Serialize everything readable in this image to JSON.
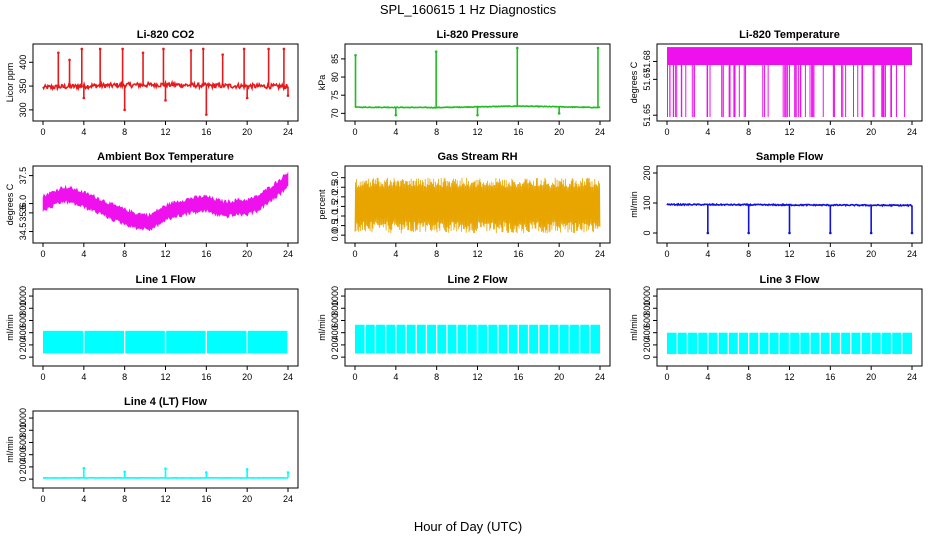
{
  "figure": {
    "title": "SPL_160615  1 Hz Diagnostics",
    "xlabel": "Hour of Day (UTC)"
  },
  "chart_data": [
    {
      "type": "line",
      "title": "Li-820 CO2",
      "ylabel": "Licor ppm",
      "color": "#e8191b",
      "xlim": [
        0,
        24
      ],
      "xticks": [
        0,
        4,
        8,
        12,
        16,
        20,
        24
      ],
      "ylim": [
        285,
        430
      ],
      "yticks": [
        300,
        350,
        400
      ],
      "ytick_labels": [
        "300",
        "350",
        "400"
      ],
      "baseline": [
        [
          0,
          347
        ],
        [
          4,
          350
        ],
        [
          8,
          352
        ],
        [
          12,
          353
        ],
        [
          16,
          351
        ],
        [
          20,
          350
        ],
        [
          24,
          349
        ]
      ],
      "spikes_up": [
        [
          1.5,
          420
        ],
        [
          2.6,
          405
        ],
        [
          3.8,
          428
        ],
        [
          5.6,
          428
        ],
        [
          7.8,
          428
        ],
        [
          9.8,
          420
        ],
        [
          11.8,
          428
        ],
        [
          14.5,
          425
        ],
        [
          15.7,
          428
        ],
        [
          17.6,
          416
        ],
        [
          19.7,
          428
        ],
        [
          22.1,
          428
        ],
        [
          23.6,
          428
        ]
      ],
      "spikes_down": [
        [
          4,
          325
        ],
        [
          8,
          300
        ],
        [
          12,
          320
        ],
        [
          16,
          290
        ],
        [
          20,
          325
        ],
        [
          24,
          330
        ]
      ],
      "noise_amp": 5
    },
    {
      "type": "line",
      "title": "Li-820 Pressure",
      "ylabel": "kPa",
      "color": "#22bb22",
      "xlim": [
        0,
        24
      ],
      "xticks": [
        0,
        4,
        8,
        12,
        16,
        20,
        24
      ],
      "ylim": [
        69,
        88
      ],
      "yticks": [
        70,
        75,
        80,
        85
      ],
      "ytick_labels": [
        "70",
        "75",
        "80",
        "85"
      ],
      "baseline": [
        [
          0,
          71.7
        ],
        [
          8,
          71.6
        ],
        [
          16,
          72.0
        ],
        [
          24,
          71.6
        ]
      ],
      "spikes_up": [
        [
          0.05,
          86
        ],
        [
          7.95,
          87
        ],
        [
          15.9,
          88
        ],
        [
          23.8,
          88
        ]
      ],
      "spikes_down": [
        [
          4,
          69.5
        ],
        [
          12,
          69.5
        ],
        [
          20,
          70.0
        ]
      ],
      "noise_amp": 0.1
    },
    {
      "type": "band",
      "title": "Li-820 Temperature",
      "ylabel": "degrees C",
      "color": "#ee11ee",
      "xlim": [
        0,
        24
      ],
      "xticks": [
        0,
        4,
        8,
        12,
        16,
        20,
        24
      ],
      "ylim": [
        51.649,
        51.6875
      ],
      "yticks": [
        51.65,
        51.67,
        51.68
      ],
      "ytick_labels": [
        "51.65",
        "51.67",
        "51.68"
      ],
      "band": [
        51.678,
        51.688
      ],
      "dropouts_to": 51.649,
      "dropout_count": 70
    },
    {
      "type": "band",
      "title": "Ambient Box Temperature",
      "ylabel": "degrees C",
      "color": "#ee11ee",
      "xlim": [
        0,
        24
      ],
      "xticks": [
        0,
        4,
        8,
        12,
        16,
        20,
        24
      ],
      "ylim": [
        34.1,
        37.8
      ],
      "yticks": [
        34.5,
        35.5,
        36.0,
        37.5
      ],
      "ytick_labels": [
        "34.5",
        "35.5",
        "36.0",
        "37.5"
      ],
      "center": [
        [
          0,
          36.0
        ],
        [
          2,
          36.5
        ],
        [
          3,
          36.4
        ],
        [
          5,
          36.0
        ],
        [
          7,
          35.5
        ],
        [
          9,
          35.1
        ],
        [
          10.5,
          35.0
        ],
        [
          12,
          35.5
        ],
        [
          13,
          35.7
        ],
        [
          14.5,
          35.9
        ],
        [
          16,
          36.0
        ],
        [
          17,
          35.8
        ],
        [
          18,
          35.7
        ],
        [
          19,
          35.8
        ],
        [
          20,
          35.8
        ],
        [
          21,
          36.0
        ],
        [
          22,
          36.4
        ],
        [
          23,
          36.8
        ],
        [
          24,
          37.3
        ]
      ],
      "half_width": 0.45
    },
    {
      "type": "band",
      "title": "Gas Stream RH",
      "ylabel": "percent",
      "color": "#e8a500",
      "xlim": [
        0,
        24
      ],
      "xticks": [
        0,
        4,
        8,
        12,
        16,
        20,
        24
      ],
      "ylim": [
        -0.2,
        3.4
      ],
      "yticks": [
        0.0,
        0.5,
        1.0,
        1.5,
        2.0,
        2.5,
        3.0
      ],
      "ytick_labels": [
        "0.0",
        "0.5",
        "1.0",
        "1.5",
        "2.0",
        "2.5",
        "3.0"
      ],
      "band": [
        0.1,
        3.0
      ],
      "oscillating": true
    },
    {
      "type": "line",
      "title": "Sample Flow",
      "ylabel": "ml/min",
      "color": "#1111dd",
      "xlim": [
        0,
        24
      ],
      "xticks": [
        0,
        4,
        8,
        12,
        16,
        20,
        24
      ],
      "ylim": [
        -20,
        210
      ],
      "yticks": [
        0,
        100,
        200
      ],
      "ytick_labels": [
        "0",
        "100",
        "200"
      ],
      "baseline": [
        [
          0,
          95
        ],
        [
          24,
          92
        ]
      ],
      "spikes_up": [],
      "spikes_down": [
        [
          4,
          0
        ],
        [
          8,
          0
        ],
        [
          12,
          0
        ],
        [
          16,
          0
        ],
        [
          20,
          0
        ],
        [
          24,
          0
        ]
      ],
      "noise_amp": 2
    },
    {
      "type": "band",
      "title": "Line 1 Flow",
      "ylabel": "ml/min",
      "color": "#00ffff",
      "xlim": [
        0,
        24
      ],
      "xticks": [
        0,
        4,
        8,
        12,
        16,
        20,
        24
      ],
      "ylim": [
        -80,
        1050
      ],
      "yticks": [
        0,
        200,
        400,
        600,
        800,
        1000
      ],
      "ytick_labels": [
        "0",
        "200",
        "400",
        "600",
        "800",
        "1000"
      ],
      "band": [
        60,
        430
      ],
      "gaps": [
        4,
        8,
        12,
        16,
        20,
        24
      ]
    },
    {
      "type": "band",
      "title": "Line 2 Flow",
      "ylabel": "ml/min",
      "color": "#00ffff",
      "xlim": [
        0,
        24
      ],
      "xticks": [
        0,
        4,
        8,
        12,
        16,
        20,
        24
      ],
      "ylim": [
        -80,
        1050
      ],
      "yticks": [
        0,
        200,
        400,
        600,
        800,
        1000
      ],
      "ytick_labels": [
        "0",
        "200",
        "400",
        "600",
        "800",
        "1000"
      ],
      "band": [
        60,
        530
      ],
      "gaps": [
        1,
        2,
        3,
        4,
        5,
        6,
        7,
        8,
        9,
        10,
        11,
        12,
        13,
        14,
        15,
        16,
        17,
        18,
        19,
        20,
        21,
        22,
        23
      ]
    },
    {
      "type": "band",
      "title": "Line 3 Flow",
      "ylabel": "ml/min",
      "color": "#00ffff",
      "xlim": [
        0,
        24
      ],
      "xticks": [
        0,
        4,
        8,
        12,
        16,
        20,
        24
      ],
      "ylim": [
        -80,
        1050
      ],
      "yticks": [
        0,
        200,
        400,
        600,
        800,
        1000
      ],
      "ytick_labels": [
        "0",
        "200",
        "400",
        "600",
        "800",
        "1000"
      ],
      "band": [
        50,
        400
      ],
      "gaps": [
        1,
        2,
        3,
        4,
        5,
        6,
        7,
        8,
        9,
        10,
        11,
        12,
        13,
        14,
        15,
        16,
        17,
        18,
        19,
        20,
        21,
        22,
        23
      ]
    },
    {
      "type": "line",
      "title": "Line 4 (LT) Flow",
      "ylabel": "ml/min",
      "color": "#00ffff",
      "xlim": [
        0,
        24
      ],
      "xticks": [
        0,
        4,
        8,
        12,
        16,
        20,
        24
      ],
      "ylim": [
        -80,
        1050
      ],
      "yticks": [
        0,
        200,
        400,
        600,
        800,
        1000
      ],
      "ytick_labels": [
        "0",
        "200",
        "400",
        "600",
        "800",
        "1000"
      ],
      "baseline": [
        [
          0,
          20
        ],
        [
          24,
          20
        ]
      ],
      "spikes_up": [
        [
          4,
          180
        ],
        [
          8,
          120
        ],
        [
          12,
          170
        ],
        [
          16,
          110
        ],
        [
          20,
          160
        ],
        [
          24,
          110
        ]
      ],
      "spikes_down": [],
      "noise_amp": 3
    }
  ]
}
